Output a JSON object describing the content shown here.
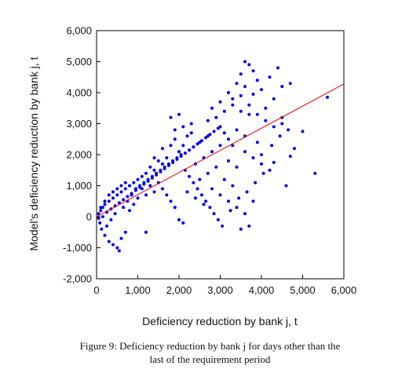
{
  "caption": {
    "line1": "Figure 9: Deficiency reduction by bank j for days other than the",
    "line2": "last of the requirement period"
  },
  "chart_data": {
    "type": "scatter",
    "xlabel": "Deficiency reduction by bank j, t",
    "ylabel": "Model's deficiency reduction by bank j, t",
    "xlim": [
      0,
      6000
    ],
    "ylim": [
      -2000,
      6000
    ],
    "x_ticks": [
      "0",
      "1,000",
      "2,000",
      "3,000",
      "4,000",
      "5,000",
      "6,000"
    ],
    "y_ticks": [
      "-2,000",
      "-1,000",
      "0",
      "1,000",
      "2,000",
      "3,000",
      "4,000",
      "5,000",
      "6,000"
    ],
    "grid": false,
    "colors": {
      "points": "#0000ee",
      "fit_line": "#ee0000"
    },
    "fit_line": {
      "x": [
        0,
        6000
      ],
      "y": [
        0,
        4280
      ]
    },
    "series": [
      {
        "values": [
          [
            3600,
            5000
          ],
          [
            3700,
            4900
          ],
          [
            3800,
            4700
          ],
          [
            4400,
            4800
          ],
          [
            4700,
            4300
          ],
          [
            3500,
            4600
          ],
          [
            4500,
            4200
          ],
          [
            3900,
            4400
          ],
          [
            4200,
            4500
          ],
          [
            3400,
            4300
          ],
          [
            4000,
            4100
          ],
          [
            3600,
            4200
          ],
          [
            3200,
            4000
          ],
          [
            3800,
            3950
          ],
          [
            4300,
            3800
          ],
          [
            3000,
            3700
          ],
          [
            2800,
            3500
          ],
          [
            3300,
            3600
          ],
          [
            4100,
            3500
          ],
          [
            3500,
            3400
          ],
          [
            2900,
            3200
          ],
          [
            3700,
            3300
          ],
          [
            4500,
            3200
          ],
          [
            5000,
            2750
          ],
          [
            5300,
            1400
          ],
          [
            5600,
            3850
          ],
          [
            4800,
            2200
          ],
          [
            4700,
            1950
          ],
          [
            4600,
            1000
          ],
          [
            4300,
            1750
          ],
          [
            4000,
            2000
          ],
          [
            3900,
            2400
          ],
          [
            3600,
            2600
          ],
          [
            3400,
            2800
          ],
          [
            3200,
            2500
          ],
          [
            3000,
            2900
          ],
          [
            2700,
            2600
          ],
          [
            2500,
            2400
          ],
          [
            2300,
            2700
          ],
          [
            2100,
            2300
          ],
          [
            2200,
            2600
          ],
          [
            1900,
            2500
          ],
          [
            2000,
            2100
          ],
          [
            1800,
            2300
          ],
          [
            1700,
            1900
          ],
          [
            1600,
            1700
          ],
          [
            1500,
            1800
          ],
          [
            1400,
            1500
          ],
          [
            1300,
            1600
          ],
          [
            1200,
            1400
          ],
          [
            1100,
            1300
          ],
          [
            1000,
            1200
          ],
          [
            900,
            1100
          ],
          [
            800,
            1000
          ],
          [
            700,
            900
          ],
          [
            600,
            800
          ],
          [
            500,
            700
          ],
          [
            400,
            600
          ],
          [
            300,
            500
          ],
          [
            200,
            400
          ],
          [
            150,
            300
          ],
          [
            100,
            200
          ],
          [
            50,
            100
          ],
          [
            80,
            -200
          ],
          [
            120,
            -400
          ],
          [
            200,
            -600
          ],
          [
            300,
            -800
          ],
          [
            400,
            -900
          ],
          [
            500,
            -1000
          ],
          [
            550,
            -1100
          ],
          [
            600,
            -700
          ],
          [
            700,
            -500
          ],
          [
            250,
            -300
          ],
          [
            350,
            -100
          ],
          [
            450,
            100
          ],
          [
            650,
            300
          ],
          [
            750,
            500
          ],
          [
            850,
            700
          ],
          [
            950,
            900
          ],
          [
            1050,
            1000
          ],
          [
            1150,
            1100
          ],
          [
            1250,
            1200
          ],
          [
            1350,
            1300
          ],
          [
            1450,
            1400
          ],
          [
            1550,
            1500
          ],
          [
            1650,
            1600
          ],
          [
            1750,
            1700
          ],
          [
            1850,
            1800
          ],
          [
            1950,
            1900
          ],
          [
            2050,
            2000
          ],
          [
            2150,
            1500
          ],
          [
            2250,
            1300
          ],
          [
            2350,
            1100
          ],
          [
            2450,
            900
          ],
          [
            2550,
            700
          ],
          [
            2650,
            500
          ],
          [
            2750,
            300
          ],
          [
            2850,
            100
          ],
          [
            2950,
            -100
          ],
          [
            3050,
            -300
          ],
          [
            3500,
            -400
          ],
          [
            3700,
            -300
          ],
          [
            3250,
            200
          ],
          [
            3450,
            600
          ],
          [
            3650,
            800
          ],
          [
            3850,
            1100
          ],
          [
            4050,
            1400
          ],
          [
            4250,
            2300
          ],
          [
            4450,
            2600
          ],
          [
            4650,
            2800
          ],
          [
            1700,
            700
          ],
          [
            1800,
            500
          ],
          [
            1900,
            300
          ],
          [
            2000,
            -100
          ],
          [
            2100,
            -200
          ],
          [
            1600,
            900
          ],
          [
            1500,
            1100
          ],
          [
            2400,
            1700
          ],
          [
            2600,
            1900
          ],
          [
            2800,
            2100
          ],
          [
            3000,
            2300
          ],
          [
            3200,
            1800
          ],
          [
            3400,
            1600
          ],
          [
            2500,
            1200
          ],
          [
            2700,
            1400
          ],
          [
            2900,
            1600
          ],
          [
            3100,
            1200
          ],
          [
            3300,
            1000
          ],
          [
            1200,
            700
          ],
          [
            1000,
            600
          ],
          [
            900,
            400
          ],
          [
            800,
            200
          ],
          [
            1100,
            900
          ],
          [
            1300,
            1000
          ],
          [
            1400,
            800
          ],
          [
            1200,
            -500
          ],
          [
            1600,
            2200
          ],
          [
            1400,
            1900
          ],
          [
            1900,
            2800
          ],
          [
            2100,
            2900
          ],
          [
            2300,
            3000
          ],
          [
            1800,
            3200
          ],
          [
            2000,
            3300
          ],
          [
            2700,
            3100
          ],
          [
            3100,
            3400
          ],
          [
            3300,
            3800
          ],
          [
            3500,
            3900
          ],
          [
            3700,
            3600
          ],
          [
            3900,
            3300
          ],
          [
            4100,
            3100
          ],
          [
            4300,
            2900
          ],
          [
            4500,
            3000
          ],
          [
            3100,
            2700
          ],
          [
            3300,
            2300
          ],
          [
            3600,
            2100
          ],
          [
            3800,
            1900
          ],
          [
            4000,
            1700
          ],
          [
            4200,
            1500
          ],
          [
            2200,
            800
          ],
          [
            2400,
            600
          ],
          [
            2600,
            400
          ],
          [
            2800,
            900
          ],
          [
            3000,
            700
          ],
          [
            3200,
            500
          ],
          [
            3400,
            300
          ],
          [
            3600,
            100
          ],
          [
            3800,
            500
          ],
          [
            700,
            1100
          ],
          [
            600,
            1000
          ],
          [
            500,
            900
          ],
          [
            400,
            800
          ],
          [
            300,
            700
          ],
          [
            200,
            500
          ],
          [
            100,
            300
          ],
          [
            50,
            -50
          ],
          [
            150,
            0
          ],
          [
            250,
            150
          ],
          [
            350,
            250
          ],
          [
            450,
            350
          ],
          [
            550,
            450
          ],
          [
            650,
            550
          ],
          [
            750,
            650
          ],
          [
            850,
            750
          ],
          [
            950,
            850
          ],
          [
            1050,
            950
          ],
          [
            1150,
            1050
          ],
          [
            1250,
            1150
          ],
          [
            1350,
            1250
          ],
          [
            1450,
            1350
          ],
          [
            1550,
            1450
          ],
          [
            1650,
            1550
          ],
          [
            1750,
            1650
          ],
          [
            1850,
            1750
          ],
          [
            1950,
            1850
          ],
          [
            2050,
            1950
          ],
          [
            2150,
            2050
          ],
          [
            2250,
            2150
          ],
          [
            2350,
            2250
          ],
          [
            2450,
            2350
          ],
          [
            2550,
            2450
          ],
          [
            2650,
            2550
          ],
          [
            2750,
            2650
          ],
          [
            2850,
            2750
          ],
          [
            2950,
            2850
          ]
        ]
      }
    ]
  }
}
